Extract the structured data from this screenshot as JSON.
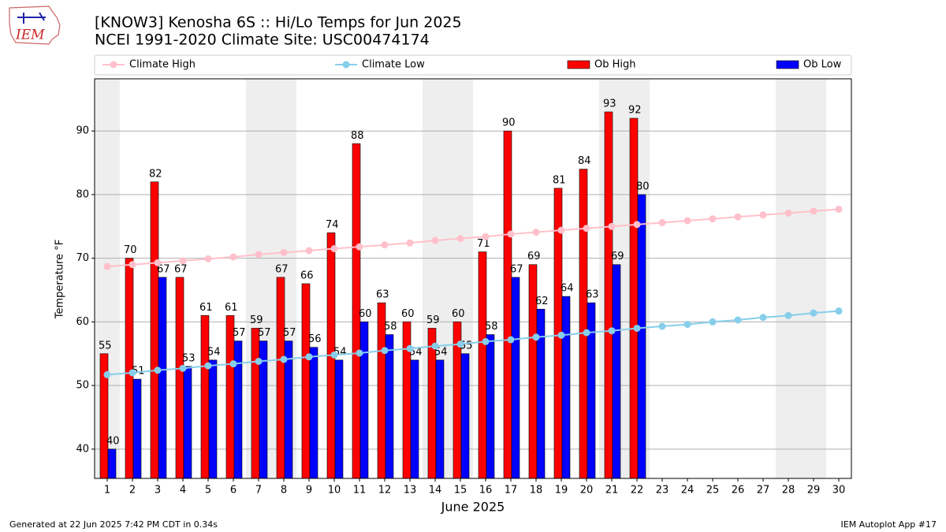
{
  "logo": {
    "text": "IEM"
  },
  "chart_data": {
    "type": "bar",
    "title": "[KNOW3] Kenosha 6S :: Hi/Lo Temps for Jun 2025",
    "subtitle": "NCEI 1991-2020 Climate Site: USC00474174",
    "x_label": "June 2025",
    "y_label": "Temperature °F",
    "categories": [
      "1",
      "2",
      "3",
      "4",
      "5",
      "6",
      "7",
      "8",
      "9",
      "10",
      "11",
      "12",
      "13",
      "14",
      "15",
      "16",
      "17",
      "18",
      "19",
      "20",
      "21",
      "22",
      "23",
      "24",
      "25",
      "26",
      "27",
      "28",
      "29",
      "30"
    ],
    "series": [
      {
        "name": "Climate High",
        "type": "line",
        "color": "#ffc0cb",
        "values": [
          68.7,
          69.0,
          69.3,
          69.6,
          69.9,
          70.2,
          70.6,
          70.9,
          71.2,
          71.5,
          71.8,
          72.1,
          72.4,
          72.8,
          73.1,
          73.4,
          73.8,
          74.1,
          74.4,
          74.7,
          75.0,
          75.3,
          75.6,
          75.9,
          76.2,
          76.5,
          76.8,
          77.1,
          77.4,
          77.7
        ]
      },
      {
        "name": "Climate Low",
        "type": "line",
        "color": "#87ceeb",
        "values": [
          51.7,
          52.0,
          52.4,
          52.7,
          53.1,
          53.4,
          53.8,
          54.1,
          54.5,
          54.8,
          55.1,
          55.5,
          55.8,
          56.2,
          56.5,
          56.9,
          57.2,
          57.6,
          57.9,
          58.3,
          58.6,
          59.0,
          59.3,
          59.6,
          60.0,
          60.3,
          60.7,
          61.0,
          61.4,
          61.7
        ]
      },
      {
        "name": "Ob High",
        "type": "bar",
        "color": "#ff0000",
        "values": [
          55,
          70,
          82,
          67,
          61,
          61,
          59,
          67,
          66,
          74,
          88,
          63,
          60,
          59,
          60,
          71,
          90,
          69,
          81,
          84,
          93,
          92,
          null,
          null,
          null,
          null,
          null,
          null,
          null,
          null
        ]
      },
      {
        "name": "Ob Low",
        "type": "bar",
        "color": "#0000ff",
        "values": [
          40,
          51,
          67,
          53,
          54,
          57,
          57,
          57,
          56,
          54,
          60,
          58,
          54,
          54,
          55,
          58,
          67,
          62,
          64,
          63,
          69,
          80,
          null,
          null,
          null,
          null,
          null,
          null,
          null,
          null
        ]
      }
    ],
    "ylim": [
      35.4,
      98.2
    ],
    "yticks": [
      40,
      50,
      60,
      70,
      80,
      90
    ],
    "grid": true,
    "legend": "top",
    "footer_left": "Generated at 22 Jun 2025 7:42 PM CDT in 0.34s",
    "footer_right": "IEM Autoplot App #17"
  }
}
